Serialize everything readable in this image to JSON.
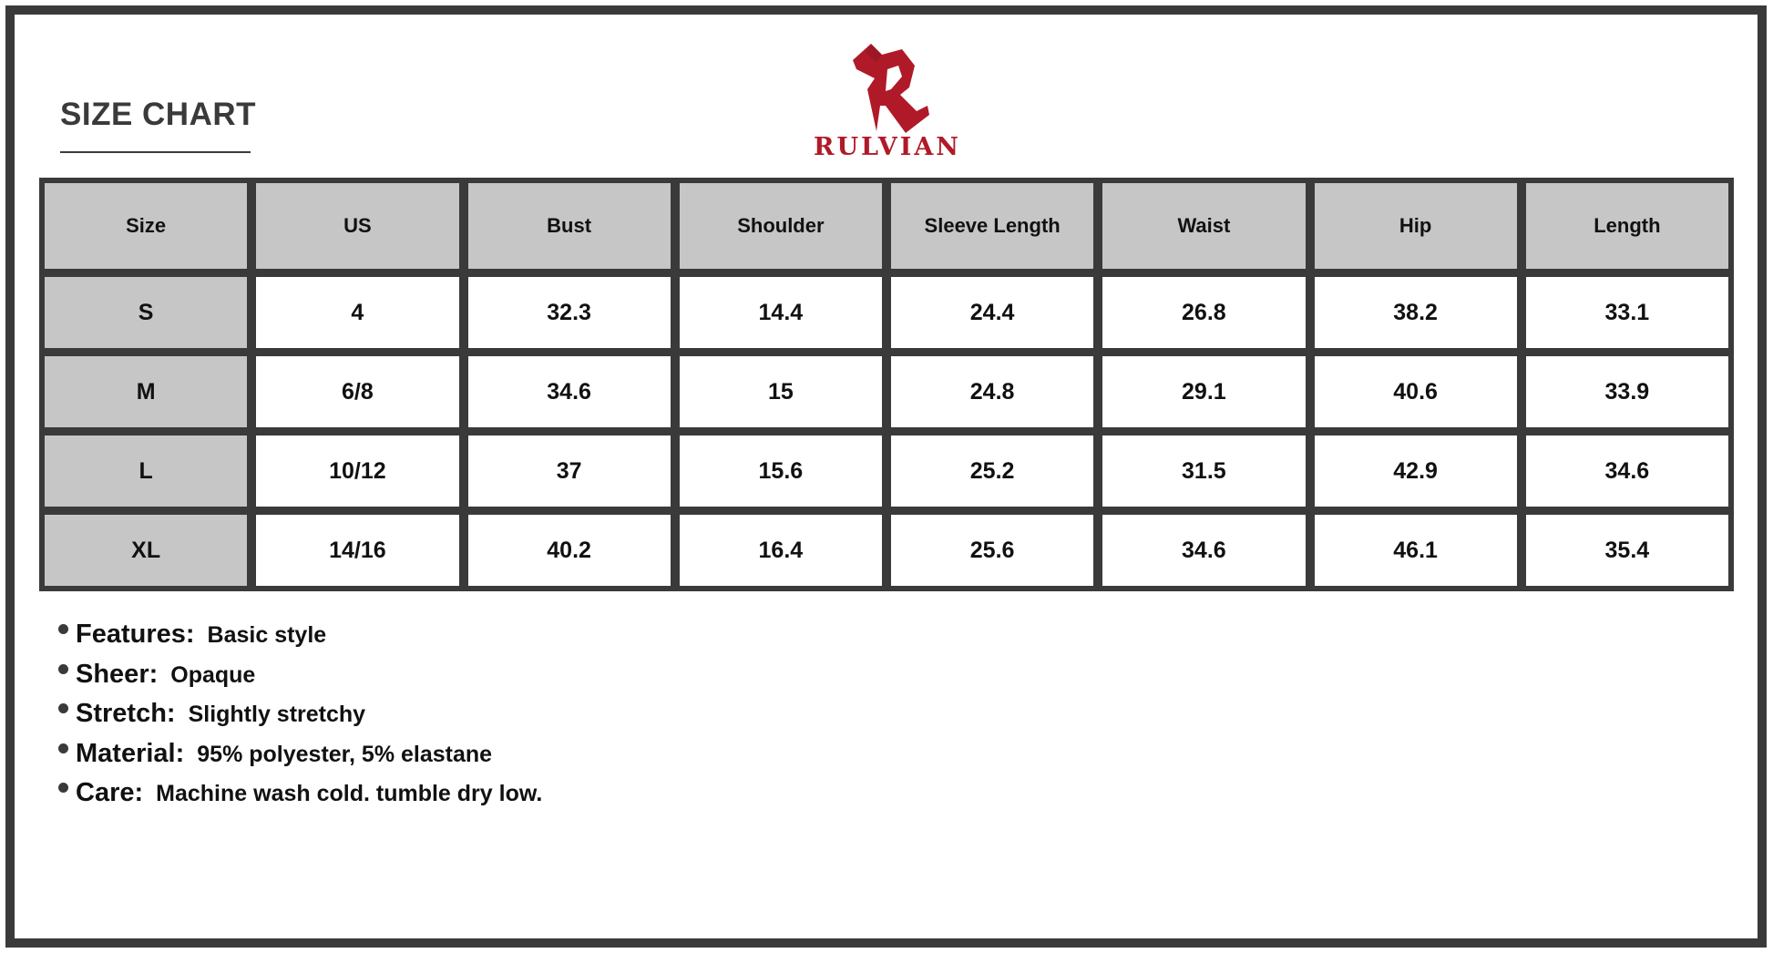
{
  "title": "SIZE CHART",
  "brand": {
    "name": "RULVIAN",
    "color": "#b01a28"
  },
  "table": {
    "headers": [
      "Size",
      "US",
      "Bust",
      "Shoulder",
      "Sleeve Length",
      "Waist",
      "Hip",
      "Length"
    ],
    "rows": [
      [
        "S",
        "4",
        "32.3",
        "14.4",
        "24.4",
        "26.8",
        "38.2",
        "33.1"
      ],
      [
        "M",
        "6/8",
        "34.6",
        "15",
        "24.8",
        "29.1",
        "40.6",
        "33.9"
      ],
      [
        "L",
        "10/12",
        "37",
        "15.6",
        "25.2",
        "31.5",
        "42.9",
        "34.6"
      ],
      [
        "XL",
        "14/16",
        "40.2",
        "16.4",
        "25.6",
        "34.6",
        "46.1",
        "35.4"
      ]
    ]
  },
  "features": [
    {
      "label": "Features:",
      "value": "Basic style"
    },
    {
      "label": "Sheer:",
      "value": "Opaque"
    },
    {
      "label": "Stretch:",
      "value": "Slightly stretchy"
    },
    {
      "label": "Material:",
      "value": "95% polyester, 5% elastane"
    },
    {
      "label": "Care:",
      "value": "Machine wash cold. tumble dry low."
    }
  ]
}
